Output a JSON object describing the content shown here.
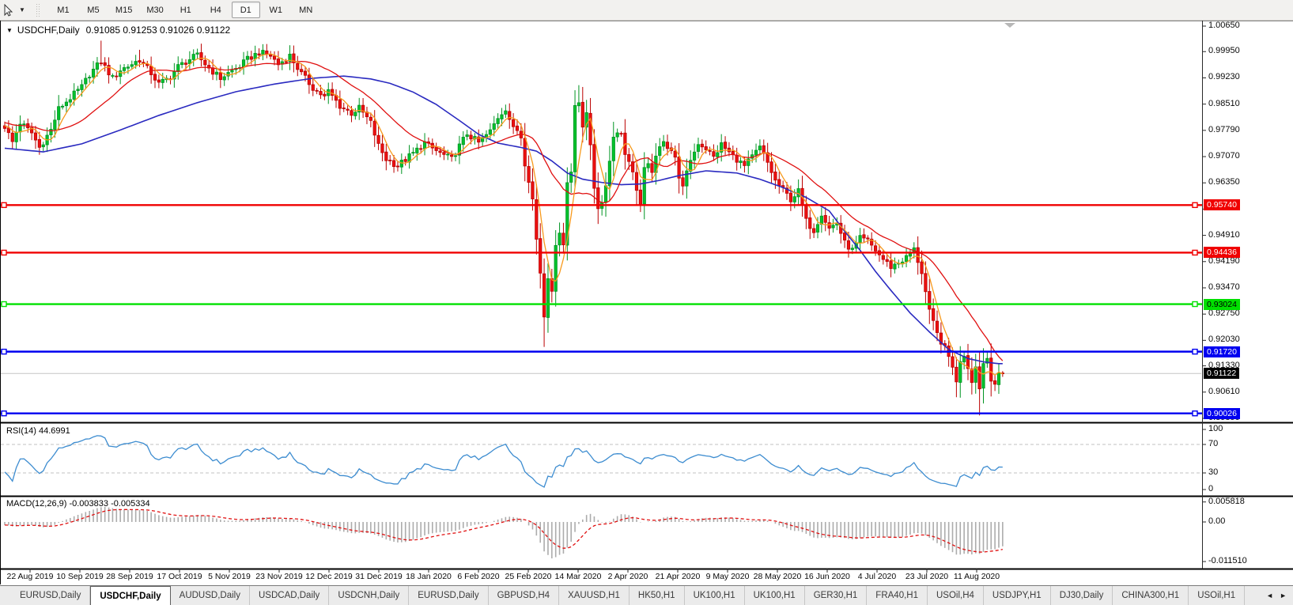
{
  "toolbar": {
    "cursor_tool": "cursor-crosshair-tool",
    "dropdown_glyph": "▼",
    "timeframes": [
      "M1",
      "M5",
      "M15",
      "M30",
      "H1",
      "H4",
      "D1",
      "W1",
      "MN"
    ],
    "active_timeframe": "D1"
  },
  "window": {
    "title_dropdown_glyph": "▼",
    "symbol": "USDCHF,Daily",
    "ohlc_text": "0.91085 0.91253 0.91026 0.91122"
  },
  "price_axis": {
    "ticks": [
      "1.00650",
      "0.99950",
      "0.99230",
      "0.98510",
      "0.97790",
      "0.97070",
      "0.96350",
      "0.95630",
      "0.94910",
      "0.94190",
      "0.93470",
      "0.92750",
      "0.92030",
      "0.91330",
      "0.90610",
      "0.89890"
    ]
  },
  "panes": {
    "rsi": {
      "label": "RSI(14) 44.6991",
      "axis_labels": [
        "100",
        "70",
        "30",
        "0"
      ]
    },
    "macd": {
      "label": "MACD(12,26,9) -0.003833 -0.005334",
      "axis_labels": [
        "0.005818",
        "0.00",
        "-0.011510"
      ]
    }
  },
  "time_axis": {
    "labels": [
      "22 Aug 2019",
      "10 Sep 2019",
      "28 Sep 2019",
      "17 Oct 2019",
      "5 Nov 2019",
      "23 Nov 2019",
      "12 Dec 2019",
      "31 Dec 2019",
      "18 Jan 2020",
      "6 Feb 2020",
      "25 Feb 2020",
      "14 Mar 2020",
      "2 Apr 2020",
      "21 Apr 2020",
      "9 May 2020",
      "28 May 2020",
      "16 Jun 2020",
      "4 Jul 2020",
      "23 Jul 2020",
      "11 Aug 2020"
    ]
  },
  "tabs": {
    "items": [
      "EURUSD,Daily",
      "USDCHF,Daily",
      "AUDUSD,Daily",
      "USDCAD,Daily",
      "USDCNH,Daily",
      "EURUSD,Daily",
      "GBPUSD,H4",
      "XAUUSD,H1",
      "HK50,H1",
      "UK100,H1",
      "UK100,H1",
      "GER30,H1",
      "FRA40,H1",
      "USOil,H4",
      "USDJPY,H1",
      "DJ30,Daily",
      "CHINA300,H1",
      "USOil,H1"
    ],
    "active_index": 1,
    "scroll_left_glyph": "◄",
    "scroll_right_glyph": "►"
  },
  "chart_data": {
    "type": "candlestick",
    "title": "USDCHF Daily with RSI(14) and MACD(12,26,9)",
    "ohlc_display": [
      0.91085,
      0.91253,
      0.91026,
      0.91122
    ],
    "ylim": [
      0.89803,
      1.0078
    ],
    "n_candles": 260,
    "up_color": "#00C22C",
    "up_border": "#009422",
    "down_color": "#ED1111",
    "down_border": "#BB0000",
    "close_anchors": [
      [
        0,
        0.979
      ],
      [
        2,
        0.9747
      ],
      [
        4,
        0.98
      ],
      [
        7,
        0.9772
      ],
      [
        9,
        0.9732
      ],
      [
        12,
        0.978
      ],
      [
        14,
        0.9838
      ],
      [
        17,
        0.9868
      ],
      [
        20,
        0.9898
      ],
      [
        22,
        0.9933
      ],
      [
        25,
        0.9968
      ],
      [
        28,
        0.9922
      ],
      [
        30,
        0.9945
      ],
      [
        32,
        0.9955
      ],
      [
        35,
        0.9973
      ],
      [
        38,
        0.9936
      ],
      [
        40,
        0.9906
      ],
      [
        43,
        0.9926
      ],
      [
        45,
        0.9954
      ],
      [
        48,
        0.9974
      ],
      [
        50,
        0.9984
      ],
      [
        53,
        0.995
      ],
      [
        56,
        0.9922
      ],
      [
        58,
        0.9936
      ],
      [
        61,
        0.9955
      ],
      [
        63,
        0.9974
      ],
      [
        66,
        0.9993
      ],
      [
        69,
        0.9984
      ],
      [
        71,
        0.996
      ],
      [
        74,
        0.9984
      ],
      [
        77,
        0.9934
      ],
      [
        80,
        0.9896
      ],
      [
        83,
        0.987
      ],
      [
        84,
        0.9886
      ],
      [
        87,
        0.9846
      ],
      [
        90,
        0.9826
      ],
      [
        92,
        0.984
      ],
      [
        95,
        0.98
      ],
      [
        97,
        0.9737
      ],
      [
        99,
        0.97
      ],
      [
        102,
        0.9682
      ],
      [
        106,
        0.9716
      ],
      [
        109,
        0.9745
      ],
      [
        110,
        0.9736
      ],
      [
        113,
        0.9716
      ],
      [
        116,
        0.97
      ],
      [
        118,
        0.9736
      ],
      [
        120,
        0.977
      ],
      [
        123,
        0.9745
      ],
      [
        126,
        0.9776
      ],
      [
        128,
        0.9815
      ],
      [
        130,
        0.984
      ],
      [
        132,
        0.9782
      ],
      [
        133,
        0.978
      ],
      [
        134,
        0.9762
      ],
      [
        135,
        0.969
      ],
      [
        136,
        0.9645
      ],
      [
        137,
        0.959
      ],
      [
        138,
        0.948
      ],
      [
        139,
        0.939
      ],
      [
        140,
        0.927
      ],
      [
        141,
        0.938
      ],
      [
        142,
        0.9345
      ],
      [
        143,
        0.9455
      ],
      [
        144,
        0.9505
      ],
      [
        145,
        0.947
      ],
      [
        146,
        0.9635
      ],
      [
        147,
        0.9665
      ],
      [
        148,
        0.985
      ],
      [
        149,
        0.9862
      ],
      [
        150,
        0.979
      ],
      [
        151,
        0.982
      ],
      [
        152,
        0.974
      ],
      [
        153,
        0.9625
      ],
      [
        154,
        0.957
      ],
      [
        155,
        0.9572
      ],
      [
        156,
        0.963
      ],
      [
        157,
        0.97
      ],
      [
        158,
        0.976
      ],
      [
        159,
        0.978
      ],
      [
        160,
        0.977
      ],
      [
        161,
        0.9715
      ],
      [
        162,
        0.97
      ],
      [
        163,
        0.966
      ],
      [
        164,
        0.962
      ],
      [
        165,
        0.9575
      ],
      [
        166,
        0.967
      ],
      [
        167,
        0.968
      ],
      [
        168,
        0.967
      ],
      [
        169,
        0.97
      ],
      [
        170,
        0.973
      ],
      [
        171,
        0.9755
      ],
      [
        172,
        0.9735
      ],
      [
        173,
        0.9725
      ],
      [
        174,
        0.97
      ],
      [
        175,
        0.9655
      ],
      [
        176,
        0.962
      ],
      [
        177,
        0.966
      ],
      [
        178,
        0.97
      ],
      [
        179,
        0.972
      ],
      [
        180,
        0.9745
      ],
      [
        182,
        0.973
      ],
      [
        184,
        0.9705
      ],
      [
        186,
        0.974
      ],
      [
        188,
        0.9718
      ],
      [
        190,
        0.97
      ],
      [
        192,
        0.968
      ],
      [
        194,
        0.9706
      ],
      [
        196,
        0.9732
      ],
      [
        198,
        0.969
      ],
      [
        200,
        0.964
      ],
      [
        202,
        0.9615
      ],
      [
        204,
        0.959
      ],
      [
        206,
        0.9612
      ],
      [
        208,
        0.953
      ],
      [
        210,
        0.9505
      ],
      [
        212,
        0.9552
      ],
      [
        214,
        0.951
      ],
      [
        216,
        0.9526
      ],
      [
        218,
        0.947
      ],
      [
        220,
        0.945
      ],
      [
        222,
        0.9482
      ],
      [
        224,
        0.9475
      ],
      [
        226,
        0.945
      ],
      [
        228,
        0.9425
      ],
      [
        230,
        0.9405
      ],
      [
        232,
        0.9416
      ],
      [
        234,
        0.943
      ],
      [
        236,
        0.9452
      ],
      [
        238,
        0.939
      ],
      [
        240,
        0.928
      ],
      [
        242,
        0.922
      ],
      [
        244,
        0.918
      ],
      [
        246,
        0.9135
      ],
      [
        247,
        0.9085
      ],
      [
        248,
        0.915
      ],
      [
        249,
        0.9165
      ],
      [
        250,
        0.913
      ],
      [
        251,
        0.9095
      ],
      [
        252,
        0.913
      ],
      [
        253,
        0.9075
      ],
      [
        254,
        0.914
      ],
      [
        255,
        0.9155
      ],
      [
        256,
        0.91
      ],
      [
        257,
        0.9085
      ],
      [
        258,
        0.9105
      ],
      [
        259,
        0.9112
      ]
    ],
    "wick_overrides": {
      "9": {
        "l": 0.9712
      },
      "25": {
        "h": 1.0025
      },
      "35": {
        "h": 1.0
      },
      "48": {
        "h": 0.9996
      },
      "66": {
        "h": 1.0004
      },
      "140": {
        "l": 0.9185
      },
      "149": {
        "h": 0.9903
      },
      "165": {
        "l": 0.9555
      },
      "247": {
        "l": 0.9047
      },
      "253": {
        "l": 0.8997
      }
    },
    "pre_trend": {
      "from": 0.9865,
      "to": 0.979,
      "bars": 60
    },
    "moving_averages": {
      "fast": {
        "period": 5,
        "color": "#F79A1D"
      },
      "medium": {
        "period": 20,
        "color": "#E01010"
      },
      "slow": {
        "color": "#2A2AC0",
        "anchors": [
          [
            0,
            0.973
          ],
          [
            10,
            0.972
          ],
          [
            20,
            0.9742
          ],
          [
            30,
            0.978
          ],
          [
            40,
            0.982
          ],
          [
            50,
            0.9855
          ],
          [
            60,
            0.9885
          ],
          [
            70,
            0.9906
          ],
          [
            80,
            0.9922
          ],
          [
            88,
            0.9928
          ],
          [
            95,
            0.992
          ],
          [
            100,
            0.9908
          ],
          [
            106,
            0.9884
          ],
          [
            112,
            0.985
          ],
          [
            118,
            0.9806
          ],
          [
            123,
            0.9768
          ],
          [
            128,
            0.9744
          ],
          [
            134,
            0.9732
          ],
          [
            138,
            0.9722
          ],
          [
            142,
            0.9695
          ],
          [
            146,
            0.9662
          ],
          [
            150,
            0.9645
          ],
          [
            155,
            0.9636
          ],
          [
            160,
            0.963
          ],
          [
            165,
            0.9632
          ],
          [
            170,
            0.9642
          ],
          [
            175,
            0.9655
          ],
          [
            182,
            0.9668
          ],
          [
            190,
            0.9662
          ],
          [
            196,
            0.9645
          ],
          [
            202,
            0.9622
          ],
          [
            208,
            0.9595
          ],
          [
            214,
            0.9558
          ],
          [
            218,
            0.9502
          ],
          [
            222,
            0.945
          ],
          [
            226,
            0.9392
          ],
          [
            230,
            0.934
          ],
          [
            235,
            0.9278
          ],
          [
            240,
            0.9226
          ],
          [
            245,
            0.9178
          ],
          [
            250,
            0.9153
          ],
          [
            254,
            0.9144
          ],
          [
            258,
            0.9139
          ]
        ]
      }
    },
    "horizontal_lines": [
      {
        "price": 0.9574,
        "label": "0.95740",
        "color": "#F00000",
        "text_color": "#FFFFFF"
      },
      {
        "price": 0.94436,
        "label": "0.94436",
        "color": "#F00000",
        "text_color": "#FFFFFF"
      },
      {
        "price": 0.93024,
        "label": "0.93024",
        "color": "#00E000",
        "text_color": "#000000"
      },
      {
        "price": 0.9172,
        "label": "0.91720",
        "color": "#0000F0",
        "text_color": "#FFFFFF"
      },
      {
        "price": 0.90026,
        "label": "0.90026",
        "color": "#0000F0",
        "text_color": "#FFFFFF"
      }
    ],
    "current_price": {
      "value": 0.91122,
      "label": "0.91122",
      "line_color": "#C6C6C6",
      "tag_bg": "#000000",
      "tag_fg": "#FFFFFF"
    },
    "rsi": {
      "period": 14,
      "display_value": 44.6991,
      "levels": [
        70,
        30
      ],
      "range": [
        0,
        100
      ],
      "line_color": "#3C8CD0",
      "level_color": "#C0C0C0"
    },
    "macd": {
      "fast": 12,
      "slow": 26,
      "signal_period": 9,
      "display_macd": -0.003833,
      "display_signal": -0.005334,
      "range": [
        -0.01151,
        0.005818
      ],
      "hist_color": "#ACACAC",
      "signal_color": "#E01010"
    }
  }
}
